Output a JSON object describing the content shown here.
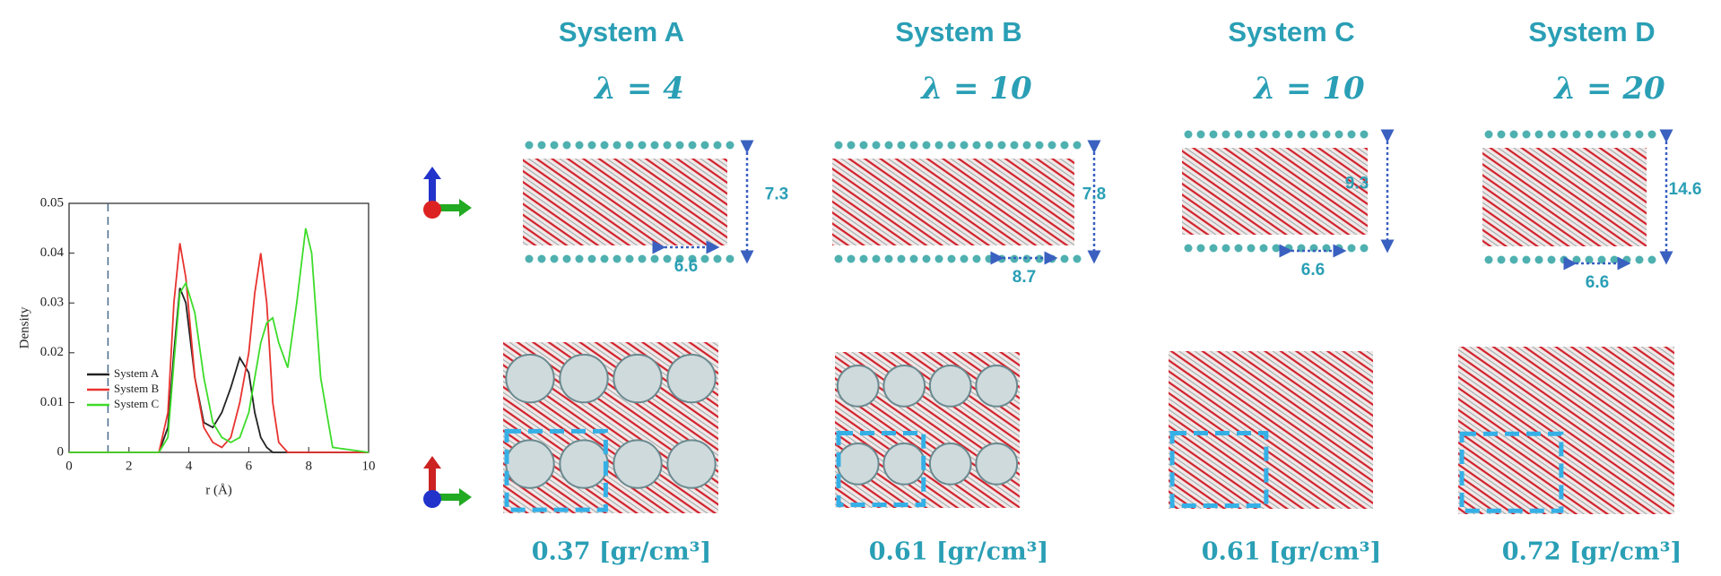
{
  "chart_data": {
    "type": "line",
    "ylabel": "Density",
    "xlabel": "r (Å)",
    "x": [
      0,
      3,
      3.3,
      3.5,
      3.7,
      3.9,
      4.2,
      4.5,
      4.8,
      5.1,
      5.4,
      5.7,
      6.0,
      6.2,
      6.4,
      6.6,
      6.8,
      7.0,
      7.3,
      7.6,
      7.9,
      8.1,
      8.4,
      8.8,
      10
    ],
    "series": [
      {
        "name": "System A",
        "color": "#222222",
        "values": [
          0,
          0,
          0.005,
          0.02,
          0.033,
          0.03,
          0.015,
          0.006,
          0.005,
          0.008,
          0.013,
          0.019,
          0.016,
          0.008,
          0.003,
          0.001,
          0,
          0,
          0,
          0,
          0,
          0,
          0,
          0,
          0
        ]
      },
      {
        "name": "System B",
        "color": "#e8332f",
        "values": [
          0,
          0,
          0.008,
          0.03,
          0.042,
          0.035,
          0.015,
          0.005,
          0.002,
          0.001,
          0.003,
          0.01,
          0.02,
          0.032,
          0.04,
          0.03,
          0.01,
          0.002,
          0,
          0,
          0,
          0,
          0,
          0,
          0
        ]
      },
      {
        "name": "System C",
        "color": "#3ddc2a",
        "values": [
          0,
          0,
          0.003,
          0.018,
          0.032,
          0.034,
          0.028,
          0.015,
          0.006,
          0.003,
          0.002,
          0.003,
          0.008,
          0.015,
          0.022,
          0.026,
          0.027,
          0.022,
          0.017,
          0.03,
          0.045,
          0.04,
          0.015,
          0.001,
          0
        ]
      }
    ],
    "reference_line": 1.3,
    "xlim": [
      0,
      10
    ],
    "xticks": [
      0,
      2,
      4,
      6,
      8,
      10
    ],
    "ylim": [
      0,
      0.05
    ],
    "yticks": [
      0,
      0.01,
      0.02,
      0.03,
      0.04,
      0.05
    ]
  },
  "panels": [
    {
      "title": "System A",
      "lambda": "λ = 4",
      "thickness": "7.3",
      "spacing": "6.6",
      "density": "0.37 [gr/cm³]"
    },
    {
      "title": "System B",
      "lambda": "λ = 10",
      "thickness": "7.8",
      "spacing": "8.7",
      "density": "0.61 [gr/cm³]"
    },
    {
      "title": "System C",
      "lambda": "λ = 10",
      "thickness": "9.3",
      "spacing": "6.6",
      "density": "0.61 [gr/cm³]"
    },
    {
      "title": "System D",
      "lambda": "λ = 20",
      "thickness": "14.6",
      "spacing": "6.6",
      "density": "0.72 [gr/cm³]"
    }
  ]
}
